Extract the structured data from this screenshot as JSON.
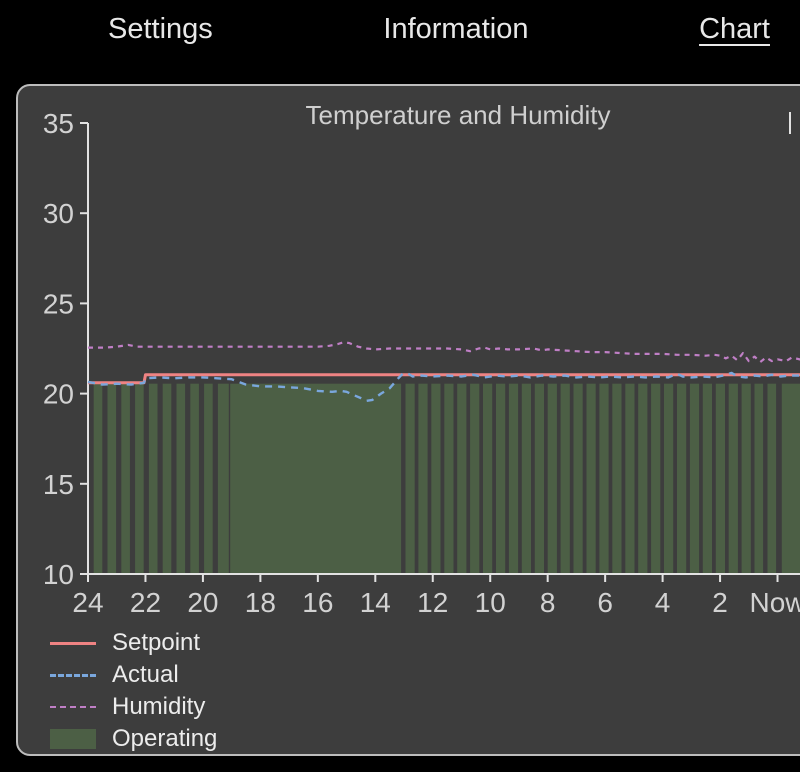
{
  "nav": {
    "tabs": [
      {
        "label": "Settings",
        "active": false
      },
      {
        "label": "Information",
        "active": false
      },
      {
        "label": "Chart",
        "active": true
      }
    ]
  },
  "chart_data": {
    "type": "line",
    "title": "Temperature and Humidity",
    "x_ticks": [
      "24",
      "22",
      "20",
      "18",
      "16",
      "14",
      "12",
      "10",
      "8",
      "6",
      "4",
      "2",
      "Now"
    ],
    "y_ticks": [
      35,
      30,
      25,
      20,
      15,
      10
    ],
    "ylim": [
      10,
      35
    ],
    "xlim_hours_ago": [
      24,
      0
    ],
    "axis_color": "#e2e2e2",
    "tick_color": "#d2d2d2",
    "series": [
      {
        "name": "Setpoint",
        "color": "#ef8383",
        "style": "solid",
        "width": 3,
        "points": [
          [
            24,
            20.6
          ],
          [
            22.05,
            20.6
          ],
          [
            22.0,
            21.05
          ],
          [
            -0.9,
            21.05
          ]
        ]
      },
      {
        "name": "Actual",
        "color": "#7aa7dd",
        "style": "dashed",
        "dash": "7 6",
        "width": 2.4,
        "points": [
          [
            24,
            20.65
          ],
          [
            23.5,
            20.5
          ],
          [
            23,
            20.55
          ],
          [
            22.5,
            20.5
          ],
          [
            22.05,
            20.6
          ],
          [
            22,
            20.85
          ],
          [
            21.5,
            20.9
          ],
          [
            21,
            20.85
          ],
          [
            20.5,
            20.9
          ],
          [
            20,
            20.9
          ],
          [
            19.5,
            20.85
          ],
          [
            19,
            20.8
          ],
          [
            18.5,
            20.5
          ],
          [
            18,
            20.4
          ],
          [
            17.5,
            20.4
          ],
          [
            17,
            20.35
          ],
          [
            16.5,
            20.3
          ],
          [
            16,
            20.15
          ],
          [
            15.5,
            20.1
          ],
          [
            15.2,
            20.15
          ],
          [
            15,
            20.1
          ],
          [
            14.8,
            19.95
          ],
          [
            14.5,
            19.75
          ],
          [
            14.3,
            19.6
          ],
          [
            14.1,
            19.65
          ],
          [
            13.8,
            20.0
          ],
          [
            13.5,
            20.3
          ],
          [
            13.2,
            20.85
          ],
          [
            13.05,
            21.1
          ],
          [
            12.9,
            21.15
          ],
          [
            12.7,
            20.95
          ],
          [
            12.4,
            21.0
          ],
          [
            12,
            20.95
          ],
          [
            11.5,
            21.0
          ],
          [
            11,
            20.95
          ],
          [
            10.6,
            21.05
          ],
          [
            10.2,
            20.9
          ],
          [
            9.8,
            21.0
          ],
          [
            9.4,
            20.95
          ],
          [
            9,
            21.0
          ],
          [
            8.6,
            20.9
          ],
          [
            8.2,
            21.0
          ],
          [
            7.8,
            20.95
          ],
          [
            7.4,
            21.0
          ],
          [
            7,
            20.9
          ],
          [
            6.6,
            20.95
          ],
          [
            6.2,
            20.9
          ],
          [
            5.8,
            20.95
          ],
          [
            5.4,
            20.9
          ],
          [
            5,
            20.95
          ],
          [
            4.6,
            20.9
          ],
          [
            4.2,
            20.95
          ],
          [
            3.8,
            20.9
          ],
          [
            3.5,
            21.1
          ],
          [
            3.3,
            20.95
          ],
          [
            3,
            20.9
          ],
          [
            2.6,
            20.95
          ],
          [
            2.2,
            20.9
          ],
          [
            1.9,
            21.0
          ],
          [
            1.6,
            21.15
          ],
          [
            1.4,
            20.95
          ],
          [
            1.1,
            20.9
          ],
          [
            0.8,
            21.0
          ],
          [
            0.5,
            20.95
          ],
          [
            0.2,
            21.05
          ],
          [
            -0.1,
            20.95
          ],
          [
            -0.4,
            21.0
          ],
          [
            -0.9,
            21.0
          ]
        ]
      },
      {
        "name": "Humidity",
        "color": "#c07fc6",
        "style": "dashed",
        "dash": "5 5",
        "width": 2.2,
        "points": [
          [
            24,
            22.55
          ],
          [
            23.4,
            22.55
          ],
          [
            23,
            22.6
          ],
          [
            22.6,
            22.7
          ],
          [
            22.3,
            22.6
          ],
          [
            22,
            22.6
          ],
          [
            21,
            22.6
          ],
          [
            20,
            22.6
          ],
          [
            19,
            22.6
          ],
          [
            18,
            22.6
          ],
          [
            17,
            22.6
          ],
          [
            16,
            22.6
          ],
          [
            15.6,
            22.65
          ],
          [
            15.3,
            22.75
          ],
          [
            15.1,
            22.85
          ],
          [
            14.9,
            22.8
          ],
          [
            14.6,
            22.6
          ],
          [
            14.3,
            22.5
          ],
          [
            14,
            22.45
          ],
          [
            13.5,
            22.5
          ],
          [
            13,
            22.5
          ],
          [
            12.5,
            22.5
          ],
          [
            12,
            22.5
          ],
          [
            11.5,
            22.5
          ],
          [
            11,
            22.45
          ],
          [
            10.7,
            22.35
          ],
          [
            10.4,
            22.5
          ],
          [
            10.2,
            22.55
          ],
          [
            10,
            22.45
          ],
          [
            9.7,
            22.5
          ],
          [
            9.4,
            22.45
          ],
          [
            9,
            22.45
          ],
          [
            8.5,
            22.5
          ],
          [
            8.2,
            22.4
          ],
          [
            8,
            22.45
          ],
          [
            7.5,
            22.4
          ],
          [
            7,
            22.35
          ],
          [
            6.5,
            22.3
          ],
          [
            6,
            22.3
          ],
          [
            5.5,
            22.25
          ],
          [
            5,
            22.2
          ],
          [
            4.5,
            22.2
          ],
          [
            4,
            22.2
          ],
          [
            3.5,
            22.15
          ],
          [
            3,
            22.15
          ],
          [
            2.5,
            22.1
          ],
          [
            2.2,
            22.15
          ],
          [
            2,
            22.1
          ],
          [
            1.8,
            21.95
          ],
          [
            1.6,
            22.1
          ],
          [
            1.4,
            21.85
          ],
          [
            1.2,
            22.25
          ],
          [
            1.0,
            21.8
          ],
          [
            0.8,
            22.05
          ],
          [
            0.6,
            21.75
          ],
          [
            0.4,
            22.0
          ],
          [
            0.2,
            21.8
          ],
          [
            0,
            21.9
          ],
          [
            -0.3,
            21.8
          ],
          [
            -0.5,
            22.0
          ],
          [
            -0.9,
            21.85
          ]
        ]
      }
    ],
    "operating": {
      "label": "Operating",
      "color": "#4c5f45",
      "top_value": 20.55,
      "bands": [
        [
          23.8,
          23.5
        ],
        [
          23.32,
          23.02
        ],
        [
          22.84,
          22.54
        ],
        [
          22.36,
          22.06
        ],
        [
          21.88,
          21.58
        ],
        [
          21.4,
          21.1
        ],
        [
          20.92,
          20.62
        ],
        [
          20.44,
          20.14
        ],
        [
          19.96,
          19.66
        ],
        [
          19.48,
          19.1
        ],
        [
          19.05,
          13.1
        ],
        [
          12.95,
          12.63
        ],
        [
          12.5,
          12.18
        ],
        [
          12.05,
          11.73
        ],
        [
          11.6,
          11.28
        ],
        [
          11.15,
          10.83
        ],
        [
          10.7,
          10.38
        ],
        [
          10.25,
          9.93
        ],
        [
          9.8,
          9.48
        ],
        [
          9.35,
          9.03
        ],
        [
          8.9,
          8.58
        ],
        [
          8.45,
          8.13
        ],
        [
          8.0,
          7.68
        ],
        [
          7.55,
          7.23
        ],
        [
          7.1,
          6.78
        ],
        [
          6.65,
          6.33
        ],
        [
          6.2,
          5.88
        ],
        [
          5.75,
          5.43
        ],
        [
          5.3,
          4.98
        ],
        [
          4.85,
          4.53
        ],
        [
          4.4,
          4.08
        ],
        [
          3.95,
          3.63
        ],
        [
          3.5,
          3.18
        ],
        [
          3.05,
          2.73
        ],
        [
          2.6,
          2.28
        ],
        [
          2.15,
          1.83
        ],
        [
          1.7,
          1.38
        ],
        [
          1.25,
          0.93
        ],
        [
          0.8,
          0.5
        ],
        [
          0.35,
          0.05
        ],
        [
          -0.15,
          -0.9
        ]
      ]
    }
  }
}
